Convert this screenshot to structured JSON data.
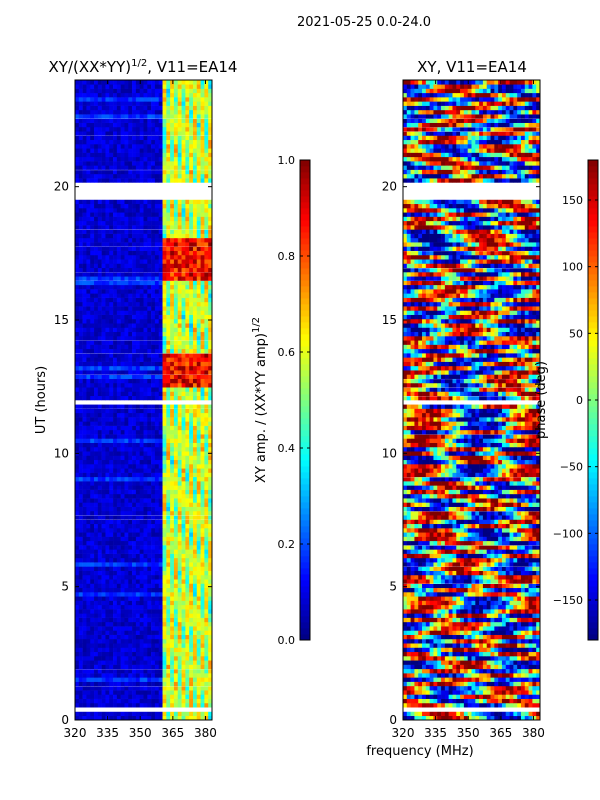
{
  "figure_title": "2021-05-25 0.0-24.0",
  "colors": {
    "jet": [
      "#00007f",
      "#0000ff",
      "#007fff",
      "#00ffff",
      "#7fff7f",
      "#ffff00",
      "#ff7f00",
      "#ff0000",
      "#7f0000"
    ],
    "flag_gap": "#ffffff",
    "axis": "#000000"
  },
  "chart_data": [
    {
      "type": "heatmap",
      "title_main": "XY/(XX*YY)",
      "title_exp": "1/2",
      "title_tail": ", V11=EA14",
      "xlabel": "",
      "ylabel": "UT (hours)",
      "xlim": [
        320,
        383
      ],
      "ylim": [
        0,
        24
      ],
      "xticks": [
        320,
        335,
        350,
        365,
        380
      ],
      "yticks": [
        0,
        5,
        10,
        15,
        20
      ],
      "value_range": [
        0.0,
        1.0
      ],
      "flagged_ut_ranges": [
        [
          19.6,
          20.1
        ],
        [
          11.85,
          12.0
        ],
        [
          0.3,
          0.45
        ]
      ],
      "bright_band_mhz": [
        360,
        383
      ],
      "high_value_ut_ranges": [
        [
          16.5,
          18.0
        ],
        [
          12.5,
          13.8
        ]
      ],
      "colorbar": {
        "label_main": "XY amp. / (XX*YY amp)",
        "label_exp": "1/2",
        "range": [
          0.0,
          1.0
        ],
        "ticks": [
          "0.0",
          "0.2",
          "0.4",
          "0.6",
          "0.8",
          "1.0"
        ]
      }
    },
    {
      "type": "heatmap",
      "title": "XY, V11=EA14",
      "xlabel": "frequency (MHz)",
      "ylabel": "",
      "xlim": [
        320,
        383
      ],
      "ylim": [
        0,
        24
      ],
      "xticks": [
        320,
        335,
        350,
        365,
        380
      ],
      "yticks": [
        0,
        5,
        10,
        15,
        20
      ],
      "value_range": [
        -180,
        180
      ],
      "flagged_ut_ranges": [
        [
          19.6,
          20.1
        ],
        [
          11.85,
          12.0
        ],
        [
          0.3,
          0.45
        ]
      ],
      "colorbar": {
        "label": "phase (deg)",
        "range": [
          -180,
          180
        ],
        "ticks": [
          "−150",
          "−100",
          "−50",
          "0",
          "50",
          "100",
          "150"
        ]
      }
    }
  ]
}
